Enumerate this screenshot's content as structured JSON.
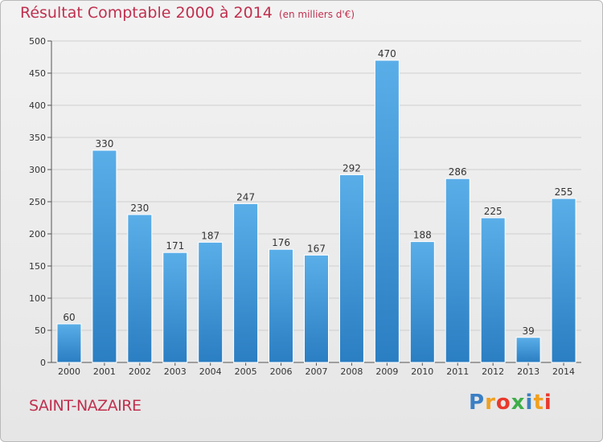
{
  "header": {
    "title": "Résultat Comptable 2000 à 2014",
    "unit": "(en milliers d'€)"
  },
  "footer": {
    "city": "SAINT-NAZAIRE",
    "brand": "Proxiti",
    "brand_letters": [
      {
        "ch": "P",
        "color": "#3a7fc4"
      },
      {
        "ch": "r",
        "color": "#f0a020"
      },
      {
        "ch": "o",
        "color": "#e8392c"
      },
      {
        "ch": "x",
        "color": "#3fae49"
      },
      {
        "ch": "i",
        "color": "#3a7fc4"
      },
      {
        "ch": "t",
        "color": "#f0a020"
      },
      {
        "ch": "i",
        "color": "#e8392c"
      }
    ]
  },
  "colors": {
    "title": "#c0304f",
    "bar_top": "#5aaee8",
    "bar_bottom": "#2a7ec2",
    "grid": "#cfcfcf"
  },
  "chart_data": {
    "type": "bar",
    "title": "Résultat Comptable 2000 à 2014",
    "subtitle": "(en milliers d'€)",
    "xlabel": "",
    "ylabel": "",
    "categories": [
      "2000",
      "2001",
      "2002",
      "2003",
      "2004",
      "2005",
      "2006",
      "2007",
      "2008",
      "2009",
      "2010",
      "2011",
      "2012",
      "2013",
      "2014"
    ],
    "values": [
      60,
      330,
      230,
      171,
      187,
      247,
      176,
      167,
      292,
      470,
      188,
      286,
      225,
      39,
      255
    ],
    "ylim": [
      0,
      500
    ],
    "yticks": [
      0,
      50,
      100,
      150,
      200,
      250,
      300,
      350,
      400,
      450,
      500
    ],
    "grid": true,
    "data_labels": true
  }
}
